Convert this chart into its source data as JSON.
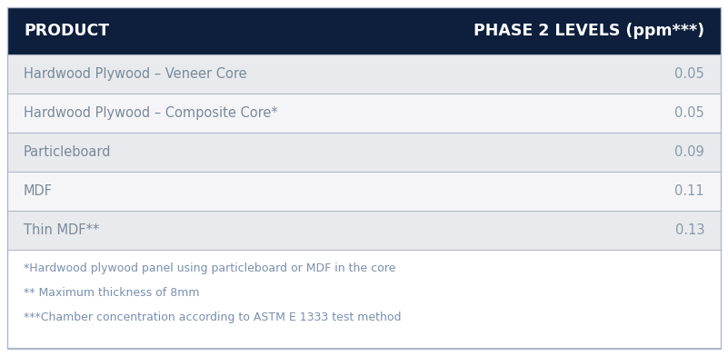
{
  "header_bg": "#0d1f3c",
  "header_text_color": "#ffffff",
  "header_left": "PRODUCT",
  "header_right": "PHASE 2 LEVELS (ppm***)",
  "rows": [
    {
      "product": "Hardwood Plywood – Veneer Core",
      "value": "0.05",
      "bg": "#e8eaed"
    },
    {
      "product": "Hardwood Plywood – Composite Core*",
      "value": "0.05",
      "bg": "#f5f5f7"
    },
    {
      "product": "Particleboard",
      "value": "0.09",
      "bg": "#e8eaed"
    },
    {
      "product": "MDF",
      "value": "0.11",
      "bg": "#f5f5f7"
    },
    {
      "product": "Thin MDF**",
      "value": "0.13",
      "bg": "#e8eaed"
    }
  ],
  "footnotes": [
    "*Hardwood plywood panel using particleboard or MDF in the core",
    "** Maximum thickness of 8mm",
    "***Chamber concentration according to ASTM E 1333 test method"
  ],
  "footnote_color": "#7a8faf",
  "row_text_color": "#7a8a9a",
  "value_color": "#8a9aaa",
  "divider_color": "#b0b8c8",
  "outer_border_color": "#b0b8c8",
  "fig_bg": "#ffffff",
  "header_fontsize": 12.5,
  "row_fontsize": 10.5,
  "footnote_fontsize": 9.0
}
